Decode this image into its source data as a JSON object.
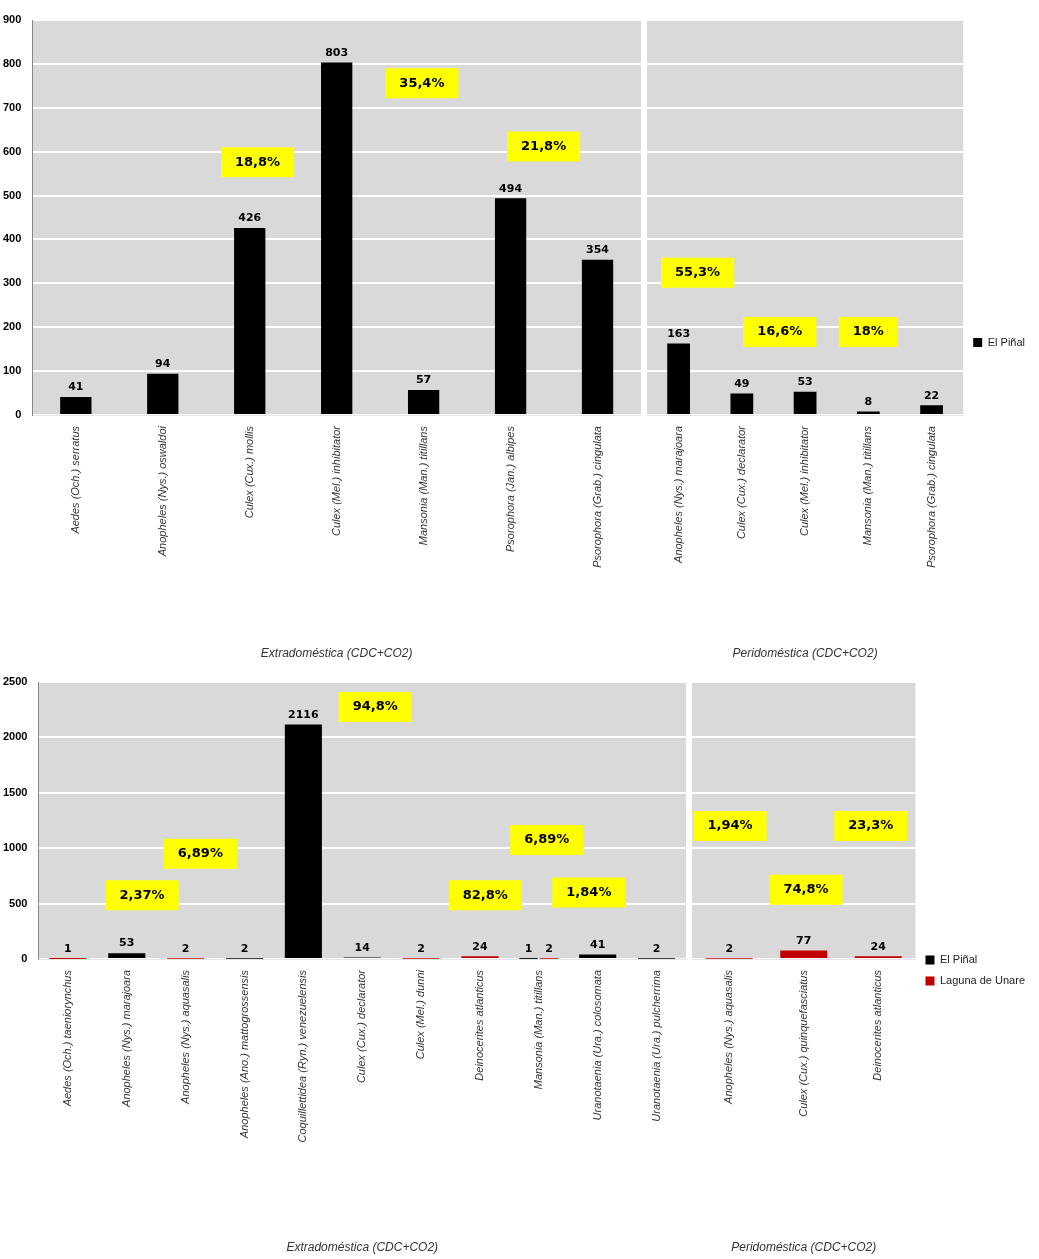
{
  "chart_data": [
    {
      "type": "bar",
      "xlabel": "Extradoméstica (CDC+CO2)",
      "categories": [
        "Aedes (Och.) serratus",
        "Anopheles (Nys.) oswaldoi",
        "Culex (Cux.) mollis",
        "Culex (Mel.) inhibitator",
        "Mansonia (Man.) titillans",
        "Psorophora (Jan.) albipes",
        "Psorophora (Grab.) cingulata"
      ],
      "series": [
        {
          "color": "#000000",
          "values": [
            41,
            94,
            426,
            803,
            57,
            494,
            354
          ]
        }
      ],
      "ylim": [
        0,
        900
      ],
      "yticks": [
        0,
        100,
        200,
        300,
        400,
        500,
        600,
        700,
        800,
        900
      ],
      "grid": "y",
      "data_labels": true,
      "annotations": [
        "18,8%",
        "35,4%",
        "21,8%"
      ]
    },
    {
      "type": "bar",
      "xlabel": "Peridoméstica (CDC+CO2)",
      "categories": [
        "Anopheles (Nys.) marajoara",
        "Culex (Cux.) declarator",
        "Culex (Mel.) inhibitator",
        "Mansonia (Man.) titillans",
        "Psorophora (Grab.) cingulata"
      ],
      "series": [
        {
          "name": "El Piñal",
          "color": "#000000",
          "values": [
            163,
            49,
            53,
            8,
            22
          ]
        }
      ],
      "ylim": [
        0,
        900
      ],
      "yticks": [
        0,
        100,
        200,
        300,
        400,
        500,
        600,
        700,
        800,
        900
      ],
      "grid": "y",
      "data_labels": true,
      "tick_labels": "x",
      "legend": "right",
      "annotations": [
        "55,3%",
        "16,6%",
        "18%"
      ]
    },
    {
      "type": "bar",
      "xlabel": "Extradoméstica (CDC+CO2)",
      "categories": [
        "Aedes (Och.) taeniorynchus",
        "Anopheles (Nys.) marajoara",
        "Anopheles (Nys.) aquasalis",
        "Anopheles (Ano.) mattogrossensis",
        "Coquillettidea (Ryn.) venezuelensis",
        "Culex (Cux.) declarator",
        "Culex (Mel.) dunni",
        "Deinocerites atlanticus",
        "Mansonia (Man.) titillans",
        "Uranotaenia (Ura.) colosomata",
        "Uranotaenia (Ura.) pulcherrima"
      ],
      "series": [
        {
          "color": "#000000",
          "values": [
            null,
            53,
            null,
            2,
            2116,
            14,
            null,
            null,
            1,
            41,
            2
          ]
        },
        {
          "color": "#c00000",
          "values": [
            1,
            null,
            2,
            null,
            null,
            null,
            2,
            24,
            2,
            null,
            null
          ]
        }
      ],
      "ylim": [
        0,
        2500
      ],
      "yticks": [
        0,
        500,
        1000,
        1500,
        2000,
        2500
      ],
      "grid": "y",
      "data_labels": true,
      "annotations": [
        "2,37%",
        "6,89%",
        "94,8%",
        "82,8%",
        "6,89%",
        "1,84%"
      ]
    },
    {
      "type": "bar",
      "xlabel": "Peridoméstica (CDC+CO2)",
      "categories": [
        "Anopheles (Nys.) aquasalis",
        "Culex (Cux.) quinquefasciatus",
        "Deinocerites atlanticus"
      ],
      "series": [
        {
          "name": "El Piñal",
          "color": "#000000",
          "values": [
            null,
            null,
            null
          ]
        },
        {
          "name": "Laguna de Unare",
          "color": "#c00000",
          "values": [
            2,
            77,
            24
          ]
        }
      ],
      "ylim": [
        0,
        2500
      ],
      "yticks": [
        0,
        500,
        1000,
        1500,
        2000,
        2500
      ],
      "grid": "y",
      "data_labels": true,
      "tick_labels": "x",
      "legend": "right",
      "annotations": [
        "1,94%",
        "74,8%",
        "23,3%"
      ]
    }
  ]
}
